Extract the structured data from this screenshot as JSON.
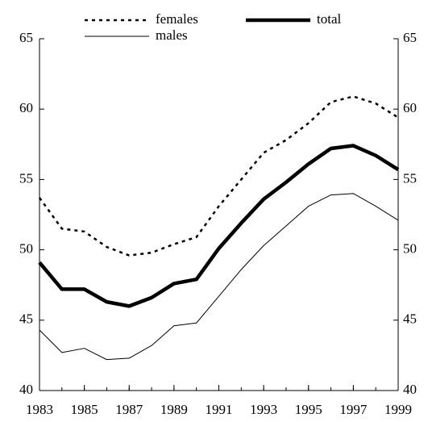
{
  "chart_data": {
    "type": "line",
    "x": [
      1983,
      1984,
      1985,
      1986,
      1987,
      1988,
      1989,
      1990,
      1991,
      1992,
      1993,
      1994,
      1995,
      1996,
      1997,
      1998,
      1999
    ],
    "series": [
      {
        "name": "females",
        "color": "#000000",
        "dash": "4,5",
        "width": 2.5,
        "values": [
          53.7,
          51.5,
          51.3,
          50.2,
          49.6,
          49.8,
          50.4,
          50.9,
          53.1,
          55.0,
          56.9,
          57.8,
          59.0,
          60.5,
          60.9,
          60.4,
          59.4
        ]
      },
      {
        "name": "total",
        "color": "#000000",
        "dash": "none",
        "width": 4.5,
        "values": [
          49.1,
          47.2,
          47.2,
          46.3,
          46.0,
          46.6,
          47.6,
          47.9,
          50.1,
          51.9,
          53.6,
          54.8,
          56.1,
          57.2,
          57.4,
          56.7,
          55.7
        ]
      },
      {
        "name": "males",
        "color": "#000000",
        "dash": "none",
        "width": 1,
        "values": [
          44.3,
          42.7,
          43.0,
          42.2,
          42.3,
          43.2,
          44.6,
          44.8,
          46.7,
          48.6,
          50.3,
          51.7,
          53.1,
          53.9,
          54.0,
          53.1,
          52.1
        ]
      }
    ],
    "xlim": [
      1983,
      1999
    ],
    "xticks": [
      1983,
      1985,
      1987,
      1989,
      1991,
      1993,
      1995,
      1997,
      1999
    ],
    "ylim": [
      40,
      65
    ],
    "yticks": [
      40,
      45,
      50,
      55,
      60,
      65
    ],
    "y2lim": [
      40,
      65
    ],
    "y2ticks": [
      40,
      45,
      50,
      55,
      60,
      65
    ],
    "grid": false
  }
}
